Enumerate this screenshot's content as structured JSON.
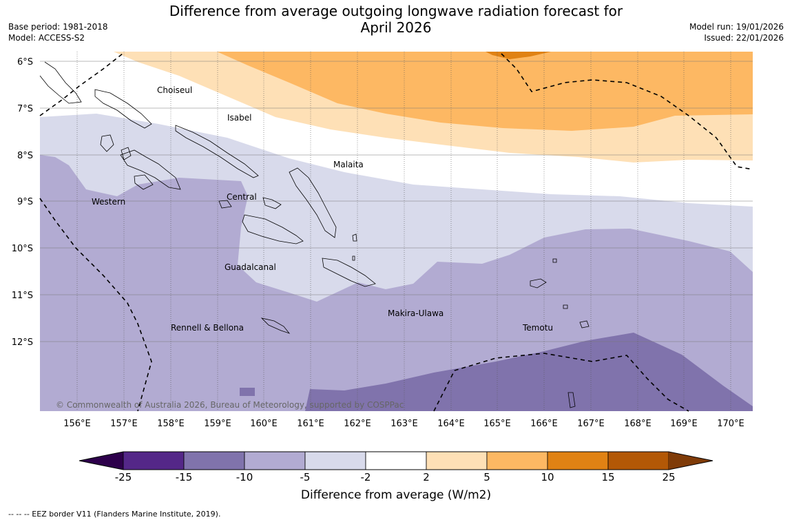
{
  "title": {
    "line1": "Difference from average outgoing longwave radiation forecast for",
    "line2": "April 2026"
  },
  "meta": {
    "base_period": "Base period: 1981-2018",
    "model": "Model: ACCESS-S2",
    "model_run": "Model run: 19/01/2026",
    "issued": "Issued: 22/01/2026"
  },
  "map": {
    "lat_labels": [
      "6°S",
      "7°S",
      "8°S",
      "9°S",
      "10°S",
      "11°S",
      "12°S"
    ],
    "lon_labels": [
      "156°E",
      "157°E",
      "158°E",
      "159°E",
      "160°E",
      "161°E",
      "162°E",
      "163°E",
      "164°E",
      "165°E",
      "166°E",
      "167°E",
      "168°E",
      "169°E",
      "170°E"
    ],
    "regions": [
      "Choiseul",
      "Isabel",
      "Malaita",
      "Western",
      "Central",
      "Guadalcanal",
      "Rennell & Bellona",
      "Makira-Ulawa",
      "Temotu"
    ],
    "copyright": "© Commonwealth of Australia 2026, Bureau of Meteorology, supported by COSPPac"
  },
  "colorbar": {
    "ticks": [
      "-25",
      "-15",
      "-10",
      "-5",
      "-2",
      "2",
      "5",
      "10",
      "15",
      "25"
    ],
    "colors": [
      "#542788",
      "#8073ac",
      "#b2abd2",
      "#d8daeb",
      "#ffffff",
      "#fee0b6",
      "#fdb863",
      "#e08214",
      "#b35806"
    ],
    "extend_low": "#2d004b",
    "extend_high": "#7f3b08",
    "label": "Difference from average (W/m2)"
  },
  "footer": "--  --  -- EEZ border V11 (Flanders Marine Institute, 2019)."
}
